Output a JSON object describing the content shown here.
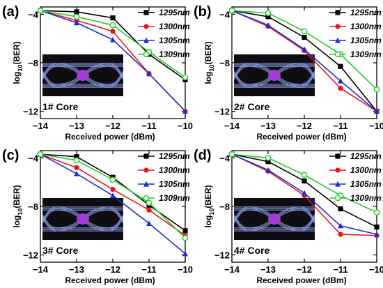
{
  "chart_data": [
    {
      "type": "line",
      "panel_letter": "(a)",
      "core_label": "1# Core",
      "xlabel": "Received power (dBm)",
      "ylabel": "log10(BER)",
      "xlim": [
        -14,
        -10
      ],
      "ylim": [
        -12.6,
        -3.4
      ],
      "xticks": [
        -14,
        -13,
        -12,
        -11,
        -10
      ],
      "yticks": [
        -4,
        -8,
        -12
      ],
      "legend_position": "top-right",
      "inset": "eye-diagram",
      "x": [
        -14,
        -13,
        -12,
        -11,
        -10
      ],
      "series": [
        {
          "name": "1295nm",
          "color": "#000000",
          "marker": "square",
          "values": [
            -3.7,
            -3.8,
            -4.3,
            -7.3,
            -9.4
          ]
        },
        {
          "name": "1300nm",
          "color": "#e8151c",
          "marker": "circle",
          "values": [
            -3.7,
            -4.5,
            -5.4,
            -8.9,
            -12.0
          ]
        },
        {
          "name": "1305nm",
          "color": "#1f2bd6",
          "marker": "triangle",
          "values": [
            -3.7,
            -4.7,
            -6.1,
            -8.9,
            -12.0
          ]
        },
        {
          "name": "1309nm",
          "color": "#22cc22",
          "marker": "open-circle",
          "values": [
            -3.7,
            -4.2,
            -4.9,
            -7.1,
            -9.2
          ]
        }
      ]
    },
    {
      "type": "line",
      "panel_letter": "(b)",
      "core_label": "2# Core",
      "xlabel": "Received power (dBm)",
      "ylabel": "log10(BER)",
      "xlim": [
        -14,
        -10
      ],
      "ylim": [
        -12.6,
        -3.4
      ],
      "xticks": [
        -14,
        -13,
        -12,
        -11,
        -10
      ],
      "yticks": [
        -4,
        -8,
        -12
      ],
      "legend_position": "top-right",
      "inset": "eye-diagram",
      "x": [
        -14,
        -13,
        -12,
        -11,
        -10
      ],
      "series": [
        {
          "name": "1295nm",
          "color": "#000000",
          "marker": "square",
          "values": [
            -3.7,
            -4.2,
            -5.9,
            -8.3,
            -12.0
          ]
        },
        {
          "name": "1300nm",
          "color": "#e8151c",
          "marker": "circle",
          "values": [
            -3.7,
            -5.0,
            -7.0,
            -10.1,
            -12.0
          ]
        },
        {
          "name": "1305nm",
          "color": "#1f2bd6",
          "marker": "triangle",
          "values": [
            -3.7,
            -4.9,
            -6.9,
            -9.5,
            -12.0
          ]
        },
        {
          "name": "1309nm",
          "color": "#22cc22",
          "marker": "open-circle",
          "values": [
            -3.7,
            -3.9,
            -5.4,
            -7.3,
            -10.2
          ]
        }
      ]
    },
    {
      "type": "line",
      "panel_letter": "(c)",
      "core_label": "3# Core",
      "xlabel": "Received power (dBm)",
      "ylabel": "log10(BER)",
      "xlim": [
        -14,
        -10
      ],
      "ylim": [
        -12.6,
        -3.4
      ],
      "xticks": [
        -14,
        -13,
        -12,
        -11,
        -10
      ],
      "yticks": [
        -4,
        -8,
        -12
      ],
      "legend_position": "top-right",
      "inset": "eye-diagram",
      "x": [
        -14,
        -13,
        -12,
        -11,
        -10
      ],
      "series": [
        {
          "name": "1295nm",
          "color": "#000000",
          "marker": "square",
          "values": [
            -3.7,
            -3.9,
            -5.6,
            -7.9,
            -10.0
          ]
        },
        {
          "name": "1300nm",
          "color": "#e8151c",
          "marker": "circle",
          "values": [
            -3.7,
            -4.8,
            -6.6,
            -8.3,
            -10.4
          ]
        },
        {
          "name": "1305nm",
          "color": "#1f2bd6",
          "marker": "triangle",
          "values": [
            -3.7,
            -5.3,
            -7.1,
            -9.4,
            -11.9
          ]
        },
        {
          "name": "1309nm",
          "color": "#22cc22",
          "marker": "open-circle",
          "values": [
            -3.7,
            -4.2,
            -5.8,
            -7.7,
            -10.6
          ]
        }
      ]
    },
    {
      "type": "line",
      "panel_letter": "(d)",
      "core_label": "4# Core",
      "xlabel": "Received power (dBm)",
      "ylabel": "log10(BER)",
      "xlim": [
        -14,
        -10
      ],
      "ylim": [
        -12.6,
        -3.4
      ],
      "xticks": [
        -14,
        -13,
        -12,
        -11,
        -10
      ],
      "yticks": [
        -4,
        -8,
        -12
      ],
      "legend_position": "top-right",
      "inset": "eye-diagram",
      "x": [
        -14,
        -13,
        -12,
        -11,
        -10
      ],
      "series": [
        {
          "name": "1295nm",
          "color": "#000000",
          "marker": "square",
          "values": [
            -3.7,
            -4.3,
            -5.9,
            -8.2,
            -9.7
          ]
        },
        {
          "name": "1300nm",
          "color": "#e8151c",
          "marker": "circle",
          "values": [
            -3.7,
            -5.1,
            -7.1,
            -10.3,
            -10.4
          ]
        },
        {
          "name": "1305nm",
          "color": "#1f2bd6",
          "marker": "triangle",
          "values": [
            -3.7,
            -5.0,
            -6.9,
            -9.6,
            -10.3
          ]
        },
        {
          "name": "1309nm",
          "color": "#22cc22",
          "marker": "open-circle",
          "values": [
            -3.7,
            -4.0,
            -5.4,
            -7.1,
            -8.5
          ]
        }
      ]
    }
  ]
}
